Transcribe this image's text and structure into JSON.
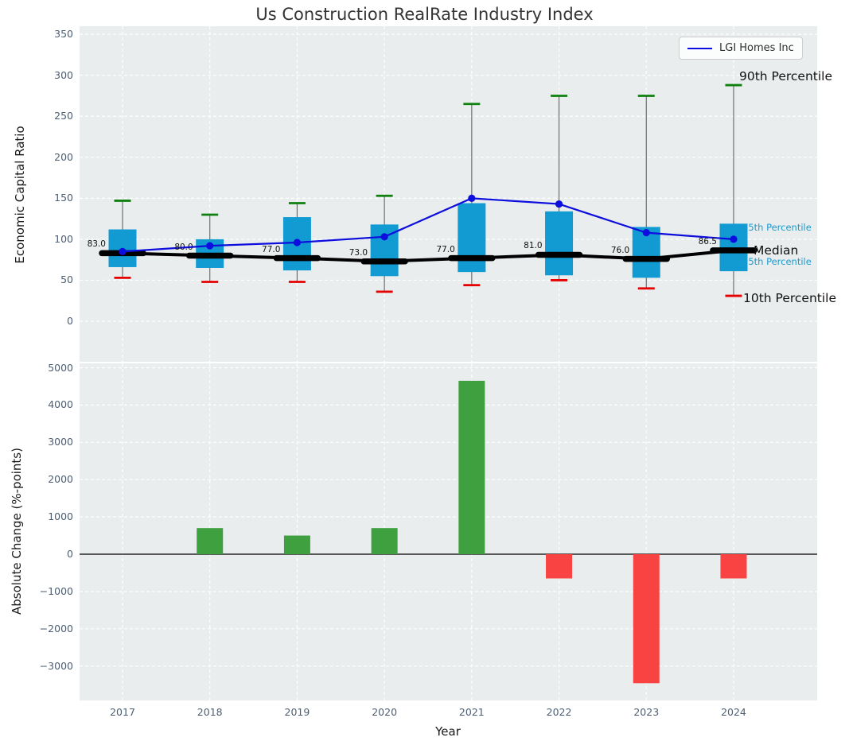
{
  "ui": {
    "title": "Us Construction RealRate Industry Index",
    "legend_label": "LGI Homes Inc",
    "annotations": {
      "p90": "90th Percentile",
      "p75": "75th Percentile",
      "median": "Median",
      "p25": "25th Percentile",
      "p10": "10th Percentile"
    }
  },
  "colors": {
    "axes_background": "#e9edee",
    "grid": "#ffffff",
    "box_fill": "#129bd3",
    "whisker": "#6e6e6e",
    "cap_90th": "#0e800e",
    "cap_10th": "#e60000",
    "median_line": "#000000",
    "lgi_line": "#0d0ddd",
    "bar_positive": "#3fa03f",
    "bar_negative": "#f94343",
    "tick_text": "#4c5d72",
    "percentile_label_cyan": "#1a9bce"
  },
  "chart_data": [
    {
      "type": "boxplot+line",
      "title": "Us Construction RealRate Industry Index",
      "ylabel": "Economic Capital Ratio",
      "categories": [
        "2017",
        "2018",
        "2019",
        "2020",
        "2021",
        "2022",
        "2023",
        "2024"
      ],
      "yticks": [
        0,
        50,
        100,
        150,
        200,
        250,
        300,
        350
      ],
      "ylim": [
        -50,
        360
      ],
      "grid": true,
      "legend_position": "upper right",
      "series": [
        {
          "name": "90th Percentile",
          "values": [
            147,
            130,
            144,
            153,
            265,
            275,
            275,
            288
          ]
        },
        {
          "name": "75th Percentile",
          "values": [
            112,
            100,
            127,
            118,
            144,
            134,
            115,
            119
          ]
        },
        {
          "name": "Median",
          "values": [
            83.0,
            80.0,
            77.0,
            73.0,
            77.0,
            81.0,
            76.0,
            86.5
          ]
        },
        {
          "name": "25th Percentile",
          "values": [
            66,
            65,
            62,
            55,
            60,
            56,
            53,
            61
          ]
        },
        {
          "name": "10th Percentile",
          "values": [
            53,
            48,
            48,
            36,
            44,
            50,
            40,
            31
          ]
        },
        {
          "name": "LGI Homes Inc",
          "values": [
            85,
            92,
            96,
            103,
            150,
            143,
            108,
            100
          ]
        }
      ],
      "median_labels": [
        "83.0",
        "80.0",
        "77.0",
        "73.0",
        "77.0",
        "81.0",
        "76.0",
        "86.5"
      ]
    },
    {
      "type": "bar",
      "ylabel": "Absolute Change (%-points)",
      "xlabel": "Year",
      "categories": [
        "2017",
        "2018",
        "2019",
        "2020",
        "2021",
        "2022",
        "2023",
        "2024"
      ],
      "values": [
        0,
        700,
        500,
        700,
        4650,
        -650,
        -3460,
        -650
      ],
      "yticks": [
        -3000,
        -2000,
        -1000,
        0,
        1000,
        2000,
        3000,
        4000,
        5000
      ],
      "ylim": [
        -3900,
        5100
      ],
      "grid": true
    }
  ]
}
